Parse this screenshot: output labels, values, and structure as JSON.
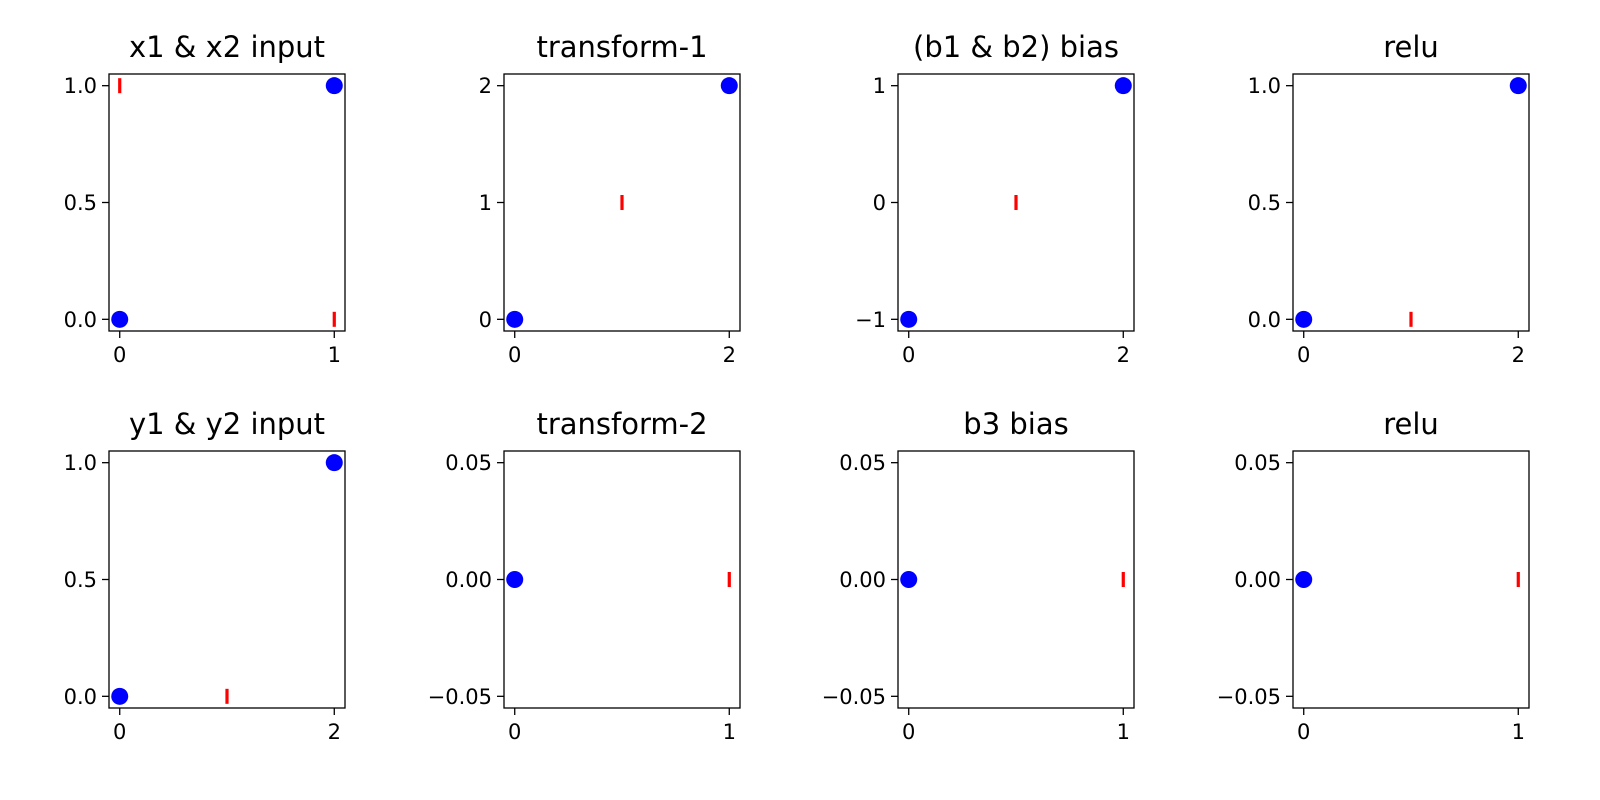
{
  "colors": {
    "blue": "#0000ff",
    "red": "#ff0000",
    "axes": "#000000",
    "background": "#ffffff"
  },
  "markers": {
    "blue": "filled-circle",
    "red": "vertical-bar"
  },
  "chart_data": [
    {
      "type": "scatter",
      "title": "x1 & x2 input",
      "xlim": [
        -0.05,
        1.05
      ],
      "ylim": [
        -0.05,
        1.05
      ],
      "xticks": [
        0,
        1
      ],
      "xtick_labels": [
        "0",
        "1"
      ],
      "yticks": [
        0,
        0.5,
        1
      ],
      "ytick_labels": [
        "0.0",
        "0.5",
        "1.0"
      ],
      "series": [
        {
          "color": "blue",
          "marker": "o",
          "points": [
            [
              0,
              0
            ],
            [
              1,
              1
            ]
          ]
        },
        {
          "color": "red",
          "marker": "|",
          "points": [
            [
              0,
              1
            ],
            [
              1,
              0
            ]
          ]
        }
      ]
    },
    {
      "type": "scatter",
      "title": "transform-1",
      "xlim": [
        -0.1,
        2.1
      ],
      "ylim": [
        -0.1,
        2.1
      ],
      "xticks": [
        0,
        2
      ],
      "xtick_labels": [
        "0",
        "2"
      ],
      "yticks": [
        0,
        1,
        2
      ],
      "ytick_labels": [
        "0",
        "1",
        "2"
      ],
      "series": [
        {
          "color": "blue",
          "marker": "o",
          "points": [
            [
              0,
              0
            ],
            [
              2,
              2
            ]
          ]
        },
        {
          "color": "red",
          "marker": "|",
          "points": [
            [
              1,
              1
            ]
          ]
        }
      ]
    },
    {
      "type": "scatter",
      "title": "(b1 & b2) bias",
      "xlim": [
        -0.1,
        2.1
      ],
      "ylim": [
        -1.1,
        1.1
      ],
      "xticks": [
        0,
        2
      ],
      "xtick_labels": [
        "0",
        "2"
      ],
      "yticks": [
        -1,
        0,
        1
      ],
      "ytick_labels": [
        "−1",
        "0",
        "1"
      ],
      "series": [
        {
          "color": "blue",
          "marker": "o",
          "points": [
            [
              0,
              -1
            ],
            [
              2,
              1
            ]
          ]
        },
        {
          "color": "red",
          "marker": "|",
          "points": [
            [
              1,
              0
            ]
          ]
        }
      ]
    },
    {
      "type": "scatter",
      "title": "relu",
      "xlim": [
        -0.1,
        2.1
      ],
      "ylim": [
        -0.05,
        1.05
      ],
      "xticks": [
        0,
        2
      ],
      "xtick_labels": [
        "0",
        "2"
      ],
      "yticks": [
        0,
        0.5,
        1
      ],
      "ytick_labels": [
        "0.0",
        "0.5",
        "1.0"
      ],
      "series": [
        {
          "color": "blue",
          "marker": "o",
          "points": [
            [
              0,
              0
            ],
            [
              2,
              1
            ]
          ]
        },
        {
          "color": "red",
          "marker": "|",
          "points": [
            [
              1,
              0
            ]
          ]
        }
      ]
    },
    {
      "type": "scatter",
      "title": "y1 & y2 input",
      "xlim": [
        -0.1,
        2.1
      ],
      "ylim": [
        -0.05,
        1.05
      ],
      "xticks": [
        0,
        2
      ],
      "xtick_labels": [
        "0",
        "2"
      ],
      "yticks": [
        0,
        0.5,
        1
      ],
      "ytick_labels": [
        "0.0",
        "0.5",
        "1.0"
      ],
      "series": [
        {
          "color": "blue",
          "marker": "o",
          "points": [
            [
              0,
              0
            ],
            [
              2,
              1
            ]
          ]
        },
        {
          "color": "red",
          "marker": "|",
          "points": [
            [
              1,
              0
            ]
          ]
        }
      ]
    },
    {
      "type": "scatter",
      "title": "transform-2",
      "xlim": [
        -0.05,
        1.05
      ],
      "ylim": [
        -0.055,
        0.055
      ],
      "xticks": [
        0,
        1
      ],
      "xtick_labels": [
        "0",
        "1"
      ],
      "yticks": [
        -0.05,
        0,
        0.05
      ],
      "ytick_labels": [
        "−0.05",
        "0.00",
        "0.05"
      ],
      "series": [
        {
          "color": "blue",
          "marker": "o",
          "points": [
            [
              0,
              0
            ]
          ]
        },
        {
          "color": "red",
          "marker": "|",
          "points": [
            [
              1,
              0
            ]
          ]
        }
      ]
    },
    {
      "type": "scatter",
      "title": "b3 bias",
      "xlim": [
        -0.05,
        1.05
      ],
      "ylim": [
        -0.055,
        0.055
      ],
      "xticks": [
        0,
        1
      ],
      "xtick_labels": [
        "0",
        "1"
      ],
      "yticks": [
        -0.05,
        0,
        0.05
      ],
      "ytick_labels": [
        "−0.05",
        "0.00",
        "0.05"
      ],
      "series": [
        {
          "color": "blue",
          "marker": "o",
          "points": [
            [
              0,
              0
            ]
          ]
        },
        {
          "color": "red",
          "marker": "|",
          "points": [
            [
              1,
              0
            ]
          ]
        }
      ]
    },
    {
      "type": "scatter",
      "title": "relu",
      "xlim": [
        -0.05,
        1.05
      ],
      "ylim": [
        -0.055,
        0.055
      ],
      "xticks": [
        0,
        1
      ],
      "xtick_labels": [
        "0",
        "1"
      ],
      "yticks": [
        -0.05,
        0,
        0.05
      ],
      "ytick_labels": [
        "−0.05",
        "0.00",
        "0.05"
      ],
      "series": [
        {
          "color": "blue",
          "marker": "o",
          "points": [
            [
              0,
              0
            ]
          ]
        },
        {
          "color": "red",
          "marker": "|",
          "points": [
            [
              1,
              0
            ]
          ]
        }
      ]
    }
  ]
}
